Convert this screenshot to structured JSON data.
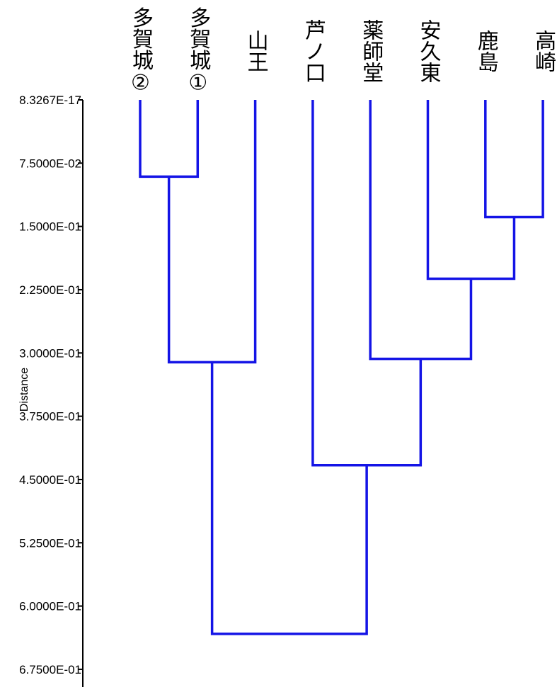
{
  "chart_data": {
    "type": "dendrogram",
    "ylabel": "Distance",
    "ylim": [
      0,
      0.675
    ],
    "yticks": [
      0,
      0.075,
      0.15,
      0.225,
      0.3,
      0.375,
      0.45,
      0.525,
      0.6,
      0.675
    ],
    "ytick_labels": [
      "8.3267E-17",
      "7.5000E-02",
      "1.5000E-01",
      "2.2500E-01",
      "3.0000E-01",
      "3.7500E-01",
      "4.5000E-01",
      "5.2500E-01",
      "6.0000E-01",
      "6.7500E-01"
    ],
    "leaves": [
      "多賀城②",
      "多賀城①",
      "山王",
      "芦ノ口",
      "薬師堂",
      "安久東",
      "鹿島",
      "高崎"
    ],
    "merges": [
      {
        "a": "L0",
        "b": "L1",
        "height": 0.091
      },
      {
        "a": "L6",
        "b": "L7",
        "height": 0.139
      },
      {
        "a": "L5",
        "b": "M1",
        "height": 0.212
      },
      {
        "a": "L4",
        "b": "M2",
        "height": 0.307
      },
      {
        "a": "M0",
        "b": "L2",
        "height": 0.311
      },
      {
        "a": "L3",
        "b": "M3",
        "height": 0.433
      },
      {
        "a": "M4",
        "b": "M5",
        "height": 0.633
      }
    ],
    "line_color": "#1414e6",
    "grid": false
  }
}
